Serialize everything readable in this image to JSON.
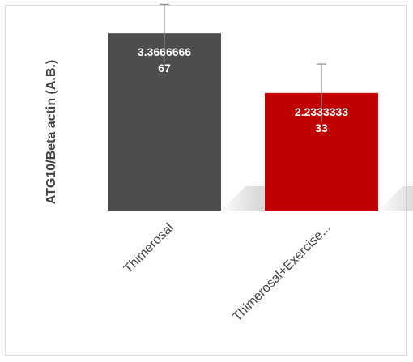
{
  "chart_data": {
    "type": "bar",
    "title": "",
    "ylabel": "ATG10/Beta actin (A.B.)",
    "xlabel": "",
    "categories": [
      "Thimerosal",
      "Thimerosal+Exercise..."
    ],
    "values": [
      3.366666667,
      2.233333333
    ],
    "errors": [
      0.55,
      0.55
    ],
    "data_labels": [
      [
        "3.3666666",
        "67"
      ],
      [
        "2.2333333",
        "33"
      ]
    ],
    "colors": [
      "#4d4d4d",
      "#c00000"
    ],
    "ylim": [
      0,
      4
    ],
    "grid": false,
    "legend": "none"
  }
}
